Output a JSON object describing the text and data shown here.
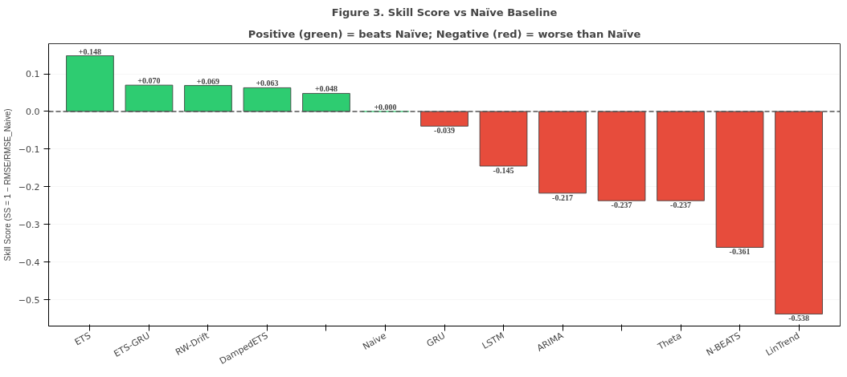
{
  "chart_data": {
    "type": "bar",
    "title": "Figure 3. Skill Score vs Naïve Baseline",
    "subtitle": "Positive (green) = beats Naïve; Negative (red) = worse than Naïve",
    "ylabel": "Skill Score (SS = 1 − RMSE/RMSE_Naive)",
    "categories": [
      "ETS",
      "ETS-GRU",
      "RW-Drift",
      "DampedETS",
      null,
      "Naive",
      "GRU",
      "LSTM",
      "ARIMA",
      null,
      "Theta",
      "N-BEATS",
      "LinTrend"
    ],
    "values": [
      0.148,
      0.07,
      0.069,
      0.063,
      0.048,
      0.0,
      -0.039,
      -0.145,
      -0.217,
      -0.237,
      -0.237,
      -0.361,
      -0.538
    ],
    "colors": [
      "#2ecc71",
      "#2ecc71",
      "#2ecc71",
      "#2ecc71",
      "#2ecc71",
      "#2ecc71",
      "#e74c3c",
      "#e74c3c",
      "#e74c3c",
      "#e74c3c",
      "#e74c3c",
      "#e74c3c",
      "#e74c3c"
    ],
    "value_labels": [
      "+0.148",
      "+0.070",
      "+0.069",
      "+0.063",
      "+0.048",
      "+0.000",
      "-0.039",
      "-0.145",
      "-0.217",
      "-0.237",
      "-0.237",
      "-0.361",
      "-0.538"
    ],
    "ylim": [
      -0.57,
      0.18
    ],
    "yticks": [
      {
        "value": -0.5,
        "label": "−0.5"
      },
      {
        "value": -0.4,
        "label": "−0.4"
      },
      {
        "value": -0.3,
        "label": "−0.3"
      },
      {
        "value": -0.2,
        "label": "−0.2"
      },
      {
        "value": -0.1,
        "label": "−0.1"
      },
      {
        "value": 0,
        "label": "0.0"
      },
      {
        "value": 0.1,
        "label": "0.1"
      }
    ],
    "grid": "y",
    "ref_lines": [
      {
        "axis": "y",
        "value": 0,
        "label": null,
        "color": "#555555",
        "line_style": "dashed"
      }
    ]
  }
}
